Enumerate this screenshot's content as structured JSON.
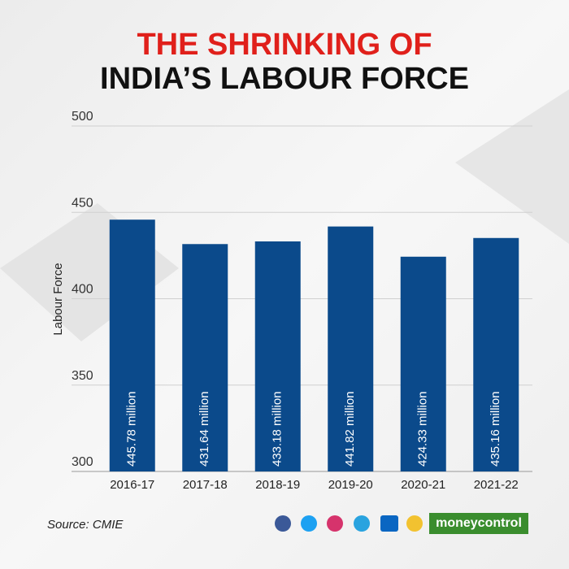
{
  "chart_data": {
    "type": "bar",
    "title": "THE SHRINKING OF",
    "subtitle": "INDIA’S LABOUR FORCE",
    "y_label": "Labour Force",
    "categories": [
      "2016-17",
      "2017-18",
      "2018-19",
      "2019-20",
      "2020-21",
      "2021-22"
    ],
    "values": [
      445.78,
      431.64,
      433.18,
      441.82,
      424.33,
      435.16
    ],
    "value_labels": [
      "445.78 million",
      "431.64 million",
      "433.18 million",
      "441.82 million",
      "424.33 million",
      "435.16 million"
    ],
    "color": "#0b4a8b",
    "ylim": [
      300,
      500
    ],
    "yticks": [
      300,
      350,
      400,
      450,
      500
    ],
    "grid": true,
    "source": "Source: CMIE",
    "brand": "moneycontrol"
  }
}
